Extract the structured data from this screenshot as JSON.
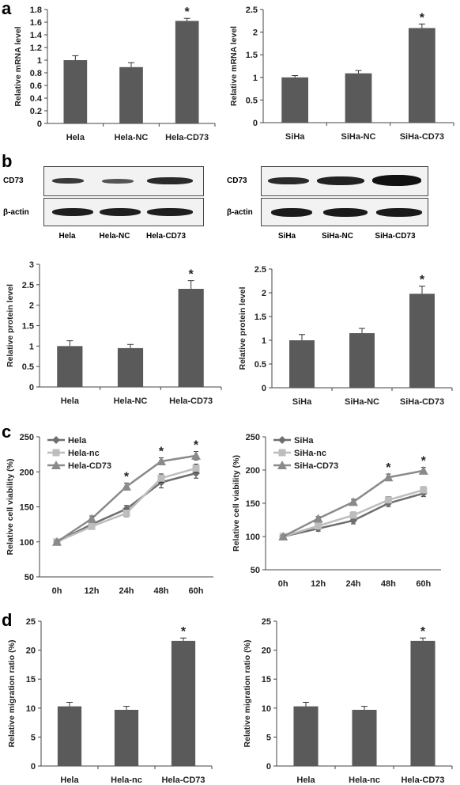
{
  "panels": {
    "a": "a",
    "b": "b",
    "c": "c",
    "d": "d"
  },
  "blots": {
    "left": {
      "rows": [
        "CD73",
        "β-actin"
      ],
      "lanes": [
        "Hela",
        "Hela-NC",
        "Hela-CD73"
      ]
    },
    "right": {
      "rows": [
        "CD73",
        "β-actin"
      ],
      "lanes": [
        "SiHa",
        "SiHa-NC",
        "SiHa-CD73"
      ]
    }
  },
  "colors": {
    "bar": "#5a5a5a",
    "series_dark": "#6e6e6e",
    "series_light": "#bdbdbd",
    "series_mid": "#8a8a8a"
  },
  "chart_data": [
    {
      "id": "a-left",
      "type": "bar",
      "ylabel": "Relative mRNA level",
      "categories": [
        "Hela",
        "Hela-NC",
        "Hela-CD73"
      ],
      "values": [
        1.0,
        0.89,
        1.62
      ],
      "errors": [
        0.07,
        0.07,
        0.04
      ],
      "significance": [
        "",
        "",
        "*"
      ],
      "ylim": [
        0,
        1.8
      ],
      "ticks": [
        "0",
        "0.2",
        "0.4",
        "0.6",
        "0.8",
        "1",
        "1.2",
        "1.4",
        "1.6",
        "1.8"
      ]
    },
    {
      "id": "a-right",
      "type": "bar",
      "ylabel": "Relative mRNA level",
      "categories": [
        "SiHa",
        "SiHa-NC",
        "SiHa-CD73"
      ],
      "values": [
        1.0,
        1.09,
        2.09
      ],
      "errors": [
        0.04,
        0.06,
        0.09
      ],
      "significance": [
        "",
        "",
        "*"
      ],
      "ylim": [
        0,
        2.5
      ],
      "ticks": [
        "0",
        "0.5",
        "1",
        "1.5",
        "2",
        "2.5"
      ]
    },
    {
      "id": "b-left",
      "type": "bar",
      "ylabel": "Relative protein  level",
      "categories": [
        "Hela",
        "Hela-NC",
        "Hela-CD73"
      ],
      "values": [
        1.0,
        0.95,
        2.4
      ],
      "errors": [
        0.13,
        0.09,
        0.2
      ],
      "significance": [
        "",
        "",
        "*"
      ],
      "ylim": [
        0,
        3
      ],
      "ticks": [
        "0",
        "0.5",
        "1",
        "1.5",
        "2",
        "2.5",
        "3"
      ]
    },
    {
      "id": "b-right",
      "type": "bar",
      "ylabel": "Relative protein  level",
      "categories": [
        "SiHa",
        "SiHa-NC",
        "SiHa-CD73"
      ],
      "values": [
        1.0,
        1.15,
        1.98
      ],
      "errors": [
        0.12,
        0.1,
        0.16
      ],
      "significance": [
        "",
        "",
        "*"
      ],
      "ylim": [
        0,
        2.5
      ],
      "ticks": [
        "0",
        "0.5",
        "1",
        "1.5",
        "2",
        "2.5"
      ]
    },
    {
      "id": "c-left",
      "type": "line",
      "ylabel": "Relative cell viability (%)",
      "x": [
        "0h",
        "12h",
        "24h",
        "48h",
        "60h"
      ],
      "series": [
        {
          "name": "Hela",
          "marker": "diamond",
          "color": "#6e6e6e",
          "values": [
            100,
            125,
            147,
            185,
            198
          ],
          "errors": [
            2,
            4,
            5,
            8,
            7
          ]
        },
        {
          "name": "Hela-nc",
          "marker": "square",
          "color": "#bdbdbd",
          "values": [
            100,
            122,
            141,
            191,
            205
          ],
          "errors": [
            2,
            4,
            5,
            6,
            6
          ]
        },
        {
          "name": "Hela-CD73",
          "marker": "triangle",
          "color": "#8a8a8a",
          "values": [
            100,
            133,
            179,
            215,
            223
          ],
          "errors": [
            2,
            4,
            5,
            5,
            6
          ]
        }
      ],
      "significance": [
        "",
        "",
        "*",
        "*",
        "*"
      ],
      "ylim": [
        50,
        250
      ],
      "ticks": [
        "50",
        "100",
        "150",
        "200",
        "250"
      ]
    },
    {
      "id": "c-right",
      "type": "line",
      "ylabel": "Relative cell viability (%)",
      "x": [
        "0h",
        "12h",
        "24h",
        "48h",
        "60h"
      ],
      "series": [
        {
          "name": "SiHa",
          "marker": "diamond",
          "color": "#6e6e6e",
          "values": [
            100,
            112,
            124,
            150,
            165
          ],
          "errors": [
            2,
            4,
            5,
            5,
            5
          ]
        },
        {
          "name": "SiHa-nc",
          "marker": "square",
          "color": "#bdbdbd",
          "values": [
            100,
            116,
            132,
            155,
            170
          ],
          "errors": [
            2,
            4,
            5,
            5,
            5
          ]
        },
        {
          "name": "SiHa-CD73",
          "marker": "triangle",
          "color": "#8a8a8a",
          "values": [
            100,
            127,
            152,
            189,
            199
          ],
          "errors": [
            2,
            3,
            4,
            5,
            5
          ]
        }
      ],
      "significance": [
        "",
        "",
        "",
        "*",
        "*"
      ],
      "ylim": [
        50,
        250
      ],
      "ticks": [
        "50",
        "100",
        "150",
        "200",
        "250"
      ]
    },
    {
      "id": "d-left",
      "type": "bar",
      "ylabel": "Relative migration ratio (%)",
      "categories": [
        "Hela",
        "Hela-nc",
        "Hela-CD73"
      ],
      "values": [
        10.3,
        9.7,
        21.6
      ],
      "errors": [
        0.7,
        0.6,
        0.5
      ],
      "significance": [
        "",
        "",
        "*"
      ],
      "ylim": [
        0,
        25
      ],
      "ticks": [
        "0",
        "5",
        "10",
        "15",
        "20",
        "25"
      ]
    },
    {
      "id": "d-right",
      "type": "bar",
      "ylabel": "Relative migration ratio (%)",
      "categories": [
        "Hela",
        "Hela-nc",
        "Hela-CD73"
      ],
      "values": [
        10.3,
        9.7,
        21.6
      ],
      "errors": [
        0.7,
        0.6,
        0.5
      ],
      "significance": [
        "",
        "",
        "*"
      ],
      "ylim": [
        0,
        25
      ],
      "ticks": [
        "0",
        "5",
        "10",
        "15",
        "20",
        "25"
      ]
    }
  ]
}
